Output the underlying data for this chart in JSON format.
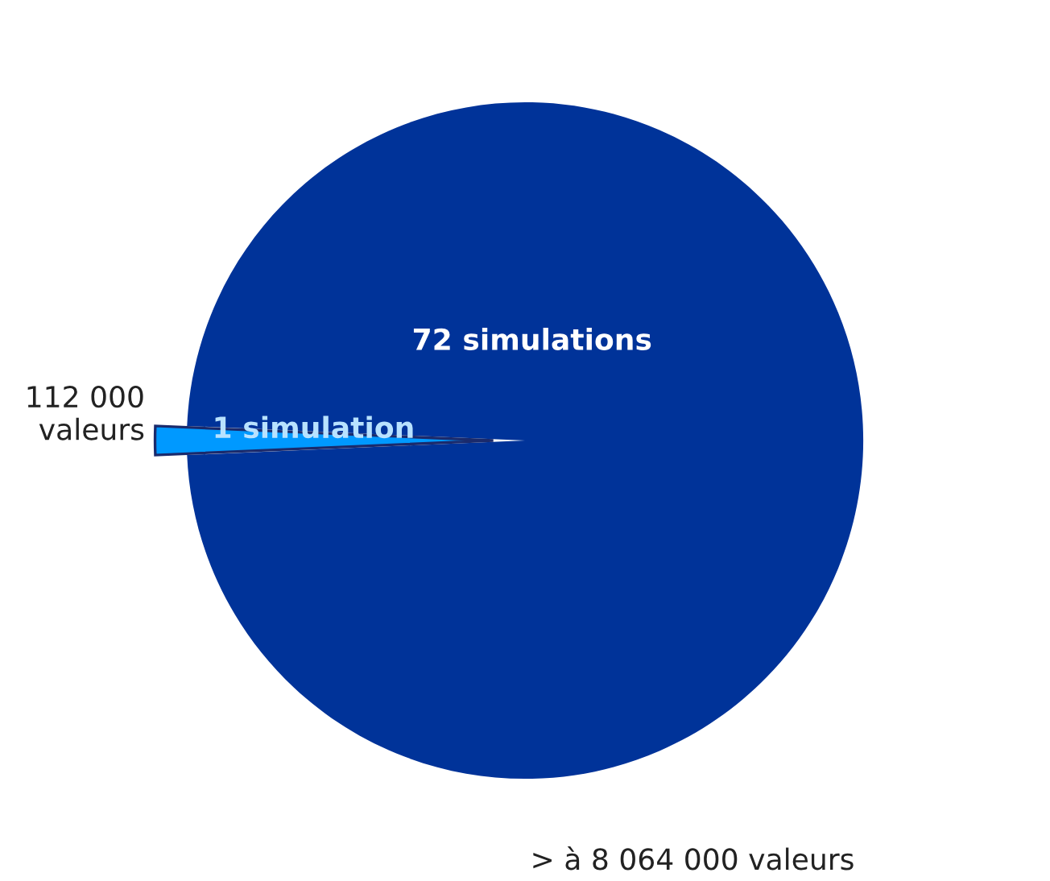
{
  "chart_data": {
    "type": "pie",
    "categories": [
      "72 simulations",
      "1 simulation"
    ],
    "values": [
      72,
      1
    ],
    "colors": [
      "#003399",
      "#0099ff"
    ],
    "annotations": [
      "112 000\nvaleurs",
      "> à 8 064 000 valeurs"
    ]
  }
}
